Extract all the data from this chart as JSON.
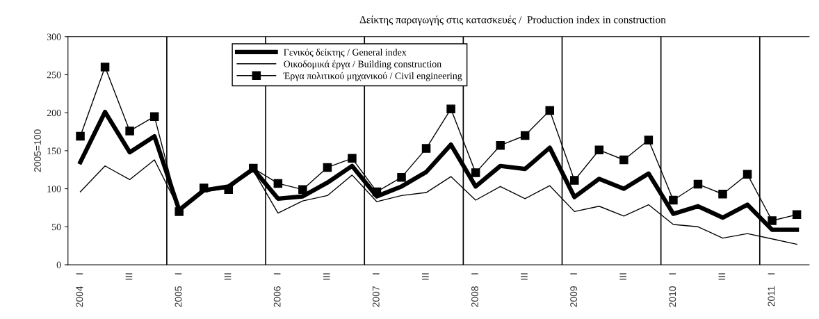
{
  "chart_data": {
    "type": "line",
    "title": "Δείκτης παραγωγής στις κατασκευές /  Production index in construction",
    "ylabel": "2005=100",
    "categories": [
      "2004    I",
      null,
      "III",
      null,
      "2005    I",
      null,
      "III",
      null,
      "2006    I",
      null,
      "III",
      null,
      "2007    I",
      null,
      "III",
      null,
      "2008    I",
      null,
      "III",
      null,
      "2009    I",
      null,
      "III",
      null,
      "2010    I",
      null,
      "III",
      null,
      "2011    I",
      null
    ],
    "series": [
      {
        "name": "Γενικός δείκτης / General index",
        "color": "#000000",
        "marker": "none",
        "values": [
          135,
          201,
          148,
          169,
          72,
          98,
          103,
          126,
          87,
          90,
          108,
          130,
          90,
          103,
          122,
          158,
          103,
          130,
          126,
          154,
          89,
          113,
          100,
          120,
          67,
          77,
          62,
          79,
          46,
          46
        ]
      },
      {
        "name": "Οικοδομικά έργα / Building construction",
        "color": "#000000",
        "marker": "none",
        "values": [
          96,
          130,
          112,
          138,
          73,
          96,
          101,
          124,
          68,
          84,
          91,
          118,
          83,
          91,
          95,
          116,
          85,
          103,
          87,
          104,
          70,
          77,
          64,
          79,
          53,
          50,
          35,
          41,
          34,
          27
        ]
      },
      {
        "name": "Έργα πολιτικού μηχανικού / Civil engineering",
        "color": "#000000",
        "marker": "square",
        "values": [
          169,
          260,
          176,
          195,
          70,
          101,
          99,
          127,
          107,
          99,
          128,
          140,
          96,
          115,
          153,
          205,
          121,
          157,
          170,
          203,
          111,
          151,
          138,
          164,
          85,
          106,
          93,
          119,
          58,
          66
        ]
      }
    ],
    "ylim": [
      0,
      300
    ],
    "yticks": [
      0,
      50,
      100,
      150,
      200,
      250,
      300
    ],
    "grid": "x",
    "legend": "top"
  }
}
